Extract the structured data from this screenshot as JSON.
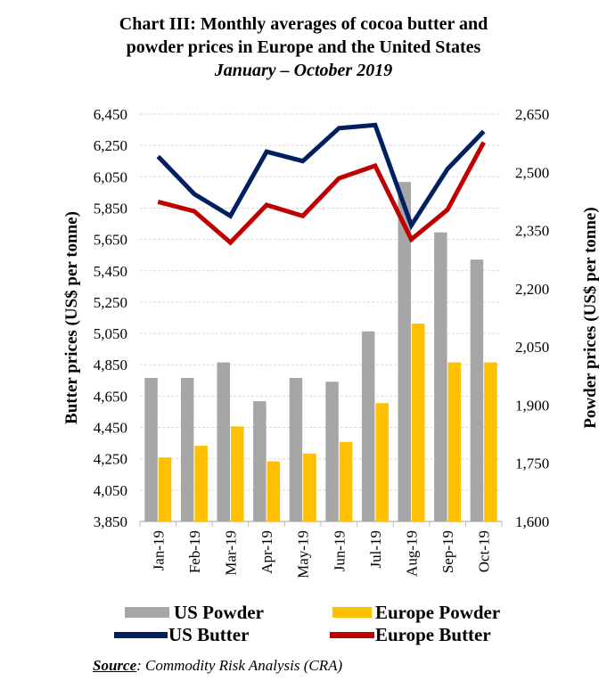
{
  "chart_data": {
    "type": "bar+line",
    "title": "Chart III: Monthly averages of cocoa butter and",
    "title_line2": "powder prices in Europe and the United States",
    "subtitle": "January – October 2019",
    "categories": [
      "Jan-19",
      "Feb-19",
      "Mar-19",
      "Apr-19",
      "May-19",
      "Jun-19",
      "Jul-19",
      "Aug-19",
      "Sep-19",
      "Oct-19"
    ],
    "ylabel_left": "Butter prices (US$ per tonne)",
    "ylabel_right": "Powder prices (US$ per tonne)",
    "ylim_left": [
      3850,
      6450
    ],
    "yticks_left": [
      "3,850",
      "4,050",
      "4,250",
      "4,450",
      "4,650",
      "4,850",
      "5,050",
      "5,250",
      "5,450",
      "5,650",
      "5,850",
      "6,050",
      "6,250",
      "6,450"
    ],
    "ylim_right": [
      1600,
      2650
    ],
    "yticks_right": [
      "1,600",
      "1,750",
      "1,900",
      "2,050",
      "2,200",
      "2,350",
      "2,500",
      "2,650"
    ],
    "grid": true,
    "legend_position": "bottom",
    "series": [
      {
        "name": "US Powder",
        "type": "bar",
        "axis": "right",
        "color": "#a6a6a6",
        "values": [
          1970,
          1970,
          2010,
          1910,
          1970,
          1960,
          2090,
          2475,
          2345,
          2275
        ]
      },
      {
        "name": "Europe Powder",
        "type": "bar",
        "axis": "right",
        "color": "#ffc000",
        "values": [
          1765,
          1795,
          1845,
          1755,
          1775,
          1805,
          1905,
          2110,
          2010,
          2010
        ]
      },
      {
        "name": "US Butter",
        "type": "line",
        "axis": "left",
        "color": "#002060",
        "values": [
          6180,
          5940,
          5800,
          6210,
          6150,
          6360,
          6380,
          5740,
          6100,
          6340
        ]
      },
      {
        "name": "Europe Butter",
        "type": "line",
        "axis": "left",
        "color": "#c00000",
        "values": [
          5890,
          5830,
          5630,
          5870,
          5800,
          6040,
          6120,
          5650,
          5840,
          6270
        ]
      }
    ]
  },
  "source": {
    "label": "Source",
    "text": ": Commodity Risk Analysis (CRA)"
  }
}
